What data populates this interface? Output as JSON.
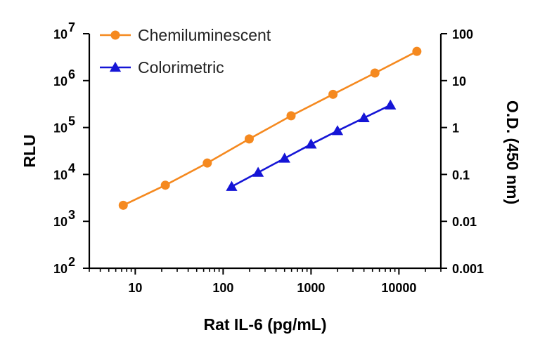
{
  "chart_data": {
    "type": "line",
    "xlabel": "Rat IL-6 (pg/mL)",
    "ylabel_left": "RLU",
    "ylabel_right": "O.D. (450 nm)",
    "x_scale": "log",
    "y_scale": "log",
    "xlim": [
      3,
      30000
    ],
    "ylim_left": [
      100,
      10000000
    ],
    "ylim_right": [
      0.001,
      100
    ],
    "x_ticks": [
      "10",
      "100",
      "1000",
      "10000"
    ],
    "y_ticks_left": [
      {
        "base": "10",
        "exp": "2"
      },
      {
        "base": "10",
        "exp": "3"
      },
      {
        "base": "10",
        "exp": "4"
      },
      {
        "base": "10",
        "exp": "5"
      },
      {
        "base": "10",
        "exp": "6"
      },
      {
        "base": "10",
        "exp": "7"
      }
    ],
    "y_ticks_right": [
      "0.001",
      "0.01",
      "0.1",
      "1",
      "10",
      "100"
    ],
    "grid": false,
    "legend_position": "top-left",
    "series": [
      {
        "name": "Chemiluminescent",
        "axis": "left",
        "marker": "circle",
        "color": "#F5891F",
        "x": [
          7.3,
          22,
          66,
          198,
          593,
          1778,
          5333,
          16000
        ],
        "y": [
          2200,
          5900,
          17500,
          57000,
          178000,
          510000,
          1450000,
          4200000
        ]
      },
      {
        "name": "Colorimetric",
        "axis": "right",
        "marker": "triangle",
        "color": "#1515D6",
        "x": [
          125,
          250,
          500,
          1000,
          2000,
          4000,
          8000
        ],
        "y": [
          0.055,
          0.11,
          0.22,
          0.44,
          0.85,
          1.6,
          3.0
        ]
      }
    ]
  }
}
